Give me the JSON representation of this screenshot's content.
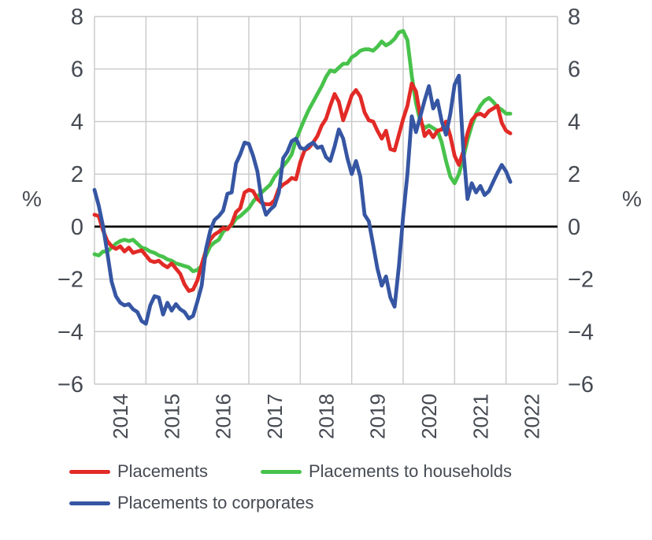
{
  "figure": {
    "y_unit_left": "%",
    "y_unit_right": "%"
  },
  "chart_data": {
    "type": "line",
    "title": "",
    "xlabel": "",
    "ylabel": "%",
    "y_unit_label": "%",
    "ylim": [
      -6,
      8
    ],
    "yticks": [
      8,
      6,
      4,
      2,
      0,
      -2,
      -4,
      -6
    ],
    "grid": true,
    "zero_line": true,
    "legend_position": "bottom",
    "x_unit": "month",
    "x_start": "2014-01",
    "x_end": "2022-02",
    "x_span_years": 9,
    "x_tick_labels": [
      "2014",
      "2015",
      "2016",
      "2017",
      "2018",
      "2019",
      "2020",
      "2021",
      "2022"
    ],
    "axis_text_color": "#454a52",
    "gridline_color": "#c9c9c9",
    "zero_line_color": "#000000",
    "series": [
      {
        "name": "Placements",
        "color": "#e22a26",
        "values": [
          0.45,
          0.4,
          -0.15,
          -0.55,
          -0.75,
          -0.85,
          -0.75,
          -0.95,
          -0.8,
          -1.0,
          -0.95,
          -0.9,
          -1.1,
          -1.3,
          -1.35,
          -1.3,
          -1.45,
          -1.55,
          -1.4,
          -1.6,
          -1.8,
          -2.2,
          -2.45,
          -2.4,
          -2.05,
          -1.45,
          -0.9,
          -0.5,
          -0.3,
          -0.2,
          -0.05,
          -0.1,
          0.1,
          0.55,
          0.7,
          1.3,
          1.4,
          1.35,
          1.05,
          0.9,
          0.85,
          0.85,
          1.0,
          1.45,
          1.6,
          1.7,
          1.85,
          1.8,
          2.45,
          2.9,
          3.0,
          3.2,
          3.45,
          3.85,
          4.1,
          4.6,
          5.05,
          4.75,
          4.05,
          4.5,
          5.0,
          5.2,
          4.95,
          4.35,
          4.05,
          4.0,
          3.65,
          3.35,
          3.65,
          2.95,
          2.9,
          3.5,
          4.1,
          4.6,
          5.45,
          5.15,
          4.2,
          3.45,
          3.65,
          3.4,
          3.65,
          3.7,
          4.0,
          3.45,
          2.7,
          2.35,
          2.85,
          3.55,
          4.05,
          4.25,
          4.3,
          4.2,
          4.4,
          4.5,
          4.6,
          3.95,
          3.65,
          3.55
        ]
      },
      {
        "name": "Placements to households",
        "color": "#47c24b",
        "values": [
          -1.05,
          -1.1,
          -0.95,
          -0.95,
          -0.8,
          -0.65,
          -0.55,
          -0.5,
          -0.55,
          -0.5,
          -0.65,
          -0.8,
          -0.85,
          -0.95,
          -1.0,
          -1.1,
          -1.15,
          -1.25,
          -1.3,
          -1.4,
          -1.45,
          -1.5,
          -1.55,
          -1.7,
          -1.65,
          -1.5,
          -1.1,
          -0.75,
          -0.6,
          -0.5,
          -0.2,
          -0.05,
          0.05,
          0.3,
          0.4,
          0.55,
          0.7,
          0.95,
          1.15,
          1.3,
          1.45,
          1.6,
          1.9,
          2.1,
          2.3,
          2.5,
          2.75,
          3.3,
          3.7,
          4.1,
          4.45,
          4.75,
          5.05,
          5.35,
          5.7,
          5.95,
          5.9,
          6.05,
          6.2,
          6.2,
          6.45,
          6.55,
          6.7,
          6.75,
          6.75,
          6.7,
          6.85,
          7.05,
          6.9,
          7.0,
          7.15,
          7.4,
          7.45,
          7.1,
          5.75,
          4.7,
          4.0,
          3.75,
          3.85,
          3.75,
          3.65,
          3.2,
          2.5,
          1.9,
          1.65,
          2.0,
          2.6,
          3.3,
          3.85,
          4.3,
          4.6,
          4.8,
          4.9,
          4.75,
          4.55,
          4.45,
          4.3,
          4.3
        ]
      },
      {
        "name": "Placements to corporates",
        "color": "#3656a3",
        "values": [
          1.4,
          0.8,
          0.0,
          -1.0,
          -2.1,
          -2.65,
          -2.9,
          -3.0,
          -2.95,
          -3.15,
          -3.25,
          -3.6,
          -3.7,
          -3.0,
          -2.65,
          -2.7,
          -3.35,
          -2.9,
          -3.2,
          -2.95,
          -3.15,
          -3.25,
          -3.5,
          -3.4,
          -2.85,
          -2.25,
          -0.85,
          -0.15,
          0.25,
          0.4,
          0.6,
          1.25,
          1.3,
          2.4,
          2.75,
          3.2,
          3.15,
          2.7,
          2.1,
          1.0,
          0.45,
          0.65,
          0.8,
          1.3,
          2.6,
          2.85,
          3.25,
          3.35,
          3.0,
          2.95,
          3.1,
          3.2,
          3.0,
          3.05,
          2.65,
          2.5,
          3.05,
          3.7,
          3.35,
          2.6,
          2.0,
          2.5,
          1.9,
          0.45,
          0.2,
          -0.7,
          -1.6,
          -2.25,
          -1.9,
          -2.7,
          -3.05,
          -1.5,
          0.4,
          2.0,
          4.2,
          3.6,
          4.2,
          4.8,
          5.35,
          4.5,
          4.8,
          4.0,
          3.5,
          4.3,
          5.4,
          5.75,
          3.0,
          1.05,
          1.65,
          1.3,
          1.55,
          1.2,
          1.35,
          1.7,
          2.05,
          2.35,
          2.1,
          1.7
        ]
      }
    ]
  },
  "legend": {
    "rows": [
      [
        "Placements",
        "Placements to households"
      ],
      [
        "Placements to corporates"
      ]
    ]
  }
}
